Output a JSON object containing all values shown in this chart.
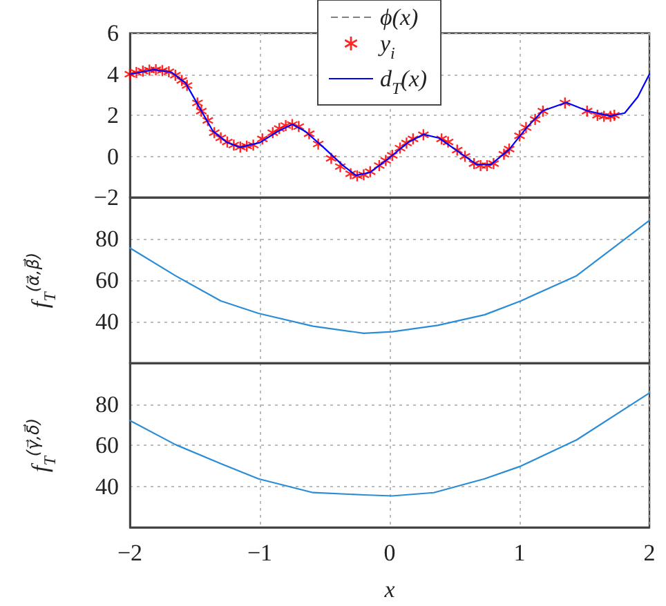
{
  "chart_data": [
    {
      "type": "line",
      "xlim": [
        -2,
        2
      ],
      "xticks": [
        -2,
        -1,
        0,
        1,
        2
      ],
      "ylim": [
        -2,
        6
      ],
      "yticks": [
        -2,
        0,
        2,
        4,
        6
      ],
      "grid": true,
      "legend": "top",
      "tick_labels": "y",
      "series": [
        {
          "name": "ϕ(x)",
          "color": "#808080",
          "line_style": "dashed",
          "marker": "none"
        },
        {
          "name": "y$_{i}$",
          "type": "scatter",
          "color": "#ff0000",
          "marker": "cross",
          "x": [
            -2.0,
            -1.95,
            -1.9,
            -1.85,
            -1.8,
            -1.75,
            -1.7,
            -1.65,
            -1.6,
            -1.56,
            -1.48,
            -1.45,
            -1.4,
            -1.35,
            -1.3,
            -1.25,
            -1.2,
            -1.15,
            -1.1,
            -1.05,
            -0.98,
            -0.9,
            -0.85,
            -0.8,
            -0.75,
            -0.7,
            -0.62,
            -0.55,
            -0.45,
            -0.38,
            -0.3,
            -0.25,
            -0.2,
            -0.15,
            -0.08,
            -0.03,
            0.02,
            0.08,
            0.13,
            0.18,
            0.26,
            0.4,
            0.45,
            0.52,
            0.58,
            0.65,
            0.7,
            0.75,
            0.8,
            0.88,
            0.92,
            1.0,
            1.05,
            1.12,
            1.18,
            1.35,
            1.52,
            1.6,
            1.65,
            1.7,
            1.73
          ],
          "values": [
            4.0,
            4.08,
            4.15,
            4.2,
            4.22,
            4.18,
            4.12,
            3.95,
            3.7,
            3.45,
            2.6,
            2.2,
            1.75,
            1.15,
            0.9,
            0.7,
            0.55,
            0.45,
            0.5,
            0.55,
            0.85,
            1.15,
            1.35,
            1.5,
            1.55,
            1.45,
            1.1,
            0.6,
            -0.1,
            -0.5,
            -0.85,
            -0.95,
            -0.9,
            -0.75,
            -0.45,
            -0.2,
            0.05,
            0.4,
            0.65,
            0.85,
            1.05,
            0.85,
            0.7,
            0.3,
            0.0,
            -0.35,
            -0.45,
            -0.45,
            -0.35,
            0.1,
            0.35,
            1.0,
            1.4,
            1.8,
            2.2,
            2.6,
            2.2,
            2.0,
            1.95,
            1.95,
            2.0
          ]
        },
        {
          "name": "d$_{T}$(x)",
          "color": "#0000ff",
          "line_style": "solid",
          "marker": "none",
          "x": [
            -2,
            -1.82,
            -1.68,
            -1.57,
            -1.47,
            -1.36,
            -1.25,
            -1.15,
            -1.0,
            -0.86,
            -0.75,
            -0.65,
            -0.51,
            -0.36,
            -0.26,
            -0.15,
            -0.01,
            0.14,
            0.26,
            0.38,
            0.53,
            0.67,
            0.78,
            0.92,
            1.06,
            1.18,
            1.36,
            1.52,
            1.7,
            1.81,
            1.91,
            2.0
          ],
          "values": [
            4.0,
            4.22,
            4.1,
            3.56,
            2.44,
            1.22,
            0.67,
            0.44,
            0.67,
            1.22,
            1.56,
            1.22,
            0.44,
            -0.44,
            -0.93,
            -0.78,
            -0.11,
            0.67,
            1.07,
            0.89,
            0.22,
            -0.4,
            -0.4,
            0.33,
            1.44,
            2.22,
            2.62,
            2.22,
            1.96,
            2.11,
            2.89,
            4.0
          ]
        }
      ]
    },
    {
      "type": "line",
      "xlim": [
        -2,
        2
      ],
      "xticks": [
        -2,
        -1,
        0,
        1,
        2
      ],
      "ylim": [
        20,
        100
      ],
      "yticks": [
        40,
        60,
        80
      ],
      "grid": true,
      "tick_labels": "y",
      "ylabel": "f$_{T}$$^{(α⃗,β⃗)}$",
      "series": [
        {
          "color": "#2b8cd6",
          "line_style": "solid",
          "marker": "none",
          "x": [
            -2,
            -1.65,
            -1.3,
            -1.01,
            -0.59,
            -0.2,
            0.02,
            0.37,
            0.73,
            1.01,
            1.44,
            2
          ],
          "values": [
            75.6,
            62.2,
            50,
            44,
            37.8,
            34.4,
            35.1,
            38.2,
            43.3,
            50,
            62.2,
            88.9
          ]
        }
      ]
    },
    {
      "type": "line",
      "xlim": [
        -2,
        2
      ],
      "xticks": [
        -2,
        -1,
        0,
        1,
        2
      ],
      "ylim": [
        20,
        100
      ],
      "yticks": [
        40,
        60,
        80
      ],
      "grid": true,
      "xlabel": "x",
      "ylabel": "f$_{T}$$^{(γ⃗,δ⃗)}$",
      "series": [
        {
          "color": "#2b8cd6",
          "line_style": "solid",
          "marker": "none",
          "x": [
            -2,
            -1.65,
            -1.3,
            -1.01,
            -0.59,
            -0.2,
            0.02,
            0.34,
            0.73,
            1.01,
            1.44,
            2
          ],
          "values": [
            72,
            60.3,
            51,
            43.6,
            36.9,
            35.8,
            35.3,
            36.9,
            43.6,
            49.8,
            62.6,
            85.4
          ]
        }
      ]
    }
  ]
}
